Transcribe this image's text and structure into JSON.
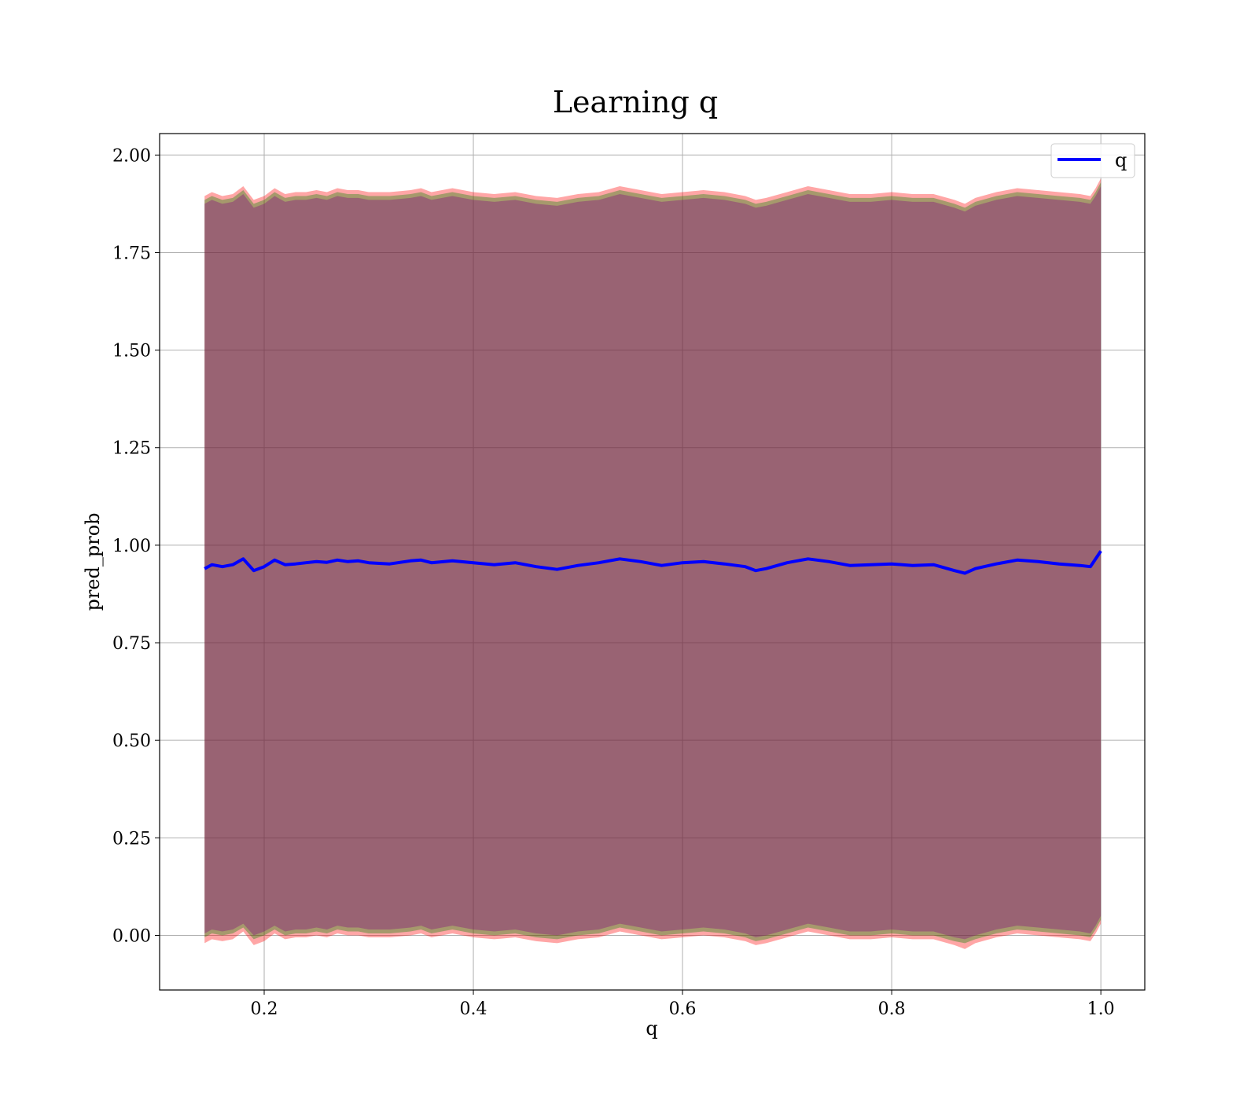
{
  "chart_data": {
    "type": "line",
    "title": "Learning q",
    "xlabel": "q",
    "ylabel": "pred_prob",
    "xlim": [
      0.1,
      1.042
    ],
    "ylim": [
      -0.14,
      2.055
    ],
    "xticks": [
      0.2,
      0.4,
      0.6,
      0.8,
      1.0
    ],
    "xtick_labels": [
      "0.2",
      "0.4",
      "0.6",
      "0.8",
      "1.0"
    ],
    "yticks": [
      0.0,
      0.25,
      0.5,
      0.75,
      1.0,
      1.25,
      1.5,
      1.75,
      2.0
    ],
    "ytick_labels": [
      "0.00",
      "0.25",
      "0.50",
      "0.75",
      "1.00",
      "1.25",
      "1.50",
      "1.75",
      "2.00"
    ],
    "grid": true,
    "legend_position": "top-right",
    "series": [
      {
        "name": "q",
        "color": "#0000ff",
        "x": [
          0.143,
          0.15,
          0.16,
          0.17,
          0.18,
          0.19,
          0.2,
          0.21,
          0.22,
          0.23,
          0.24,
          0.25,
          0.26,
          0.27,
          0.28,
          0.29,
          0.3,
          0.32,
          0.34,
          0.35,
          0.36,
          0.38,
          0.4,
          0.42,
          0.44,
          0.46,
          0.48,
          0.5,
          0.52,
          0.54,
          0.56,
          0.58,
          0.6,
          0.62,
          0.64,
          0.66,
          0.67,
          0.68,
          0.7,
          0.72,
          0.74,
          0.76,
          0.78,
          0.8,
          0.82,
          0.84,
          0.86,
          0.87,
          0.88,
          0.9,
          0.92,
          0.94,
          0.96,
          0.98,
          0.99,
          0.995,
          1.0
        ],
        "y": [
          0.94,
          0.95,
          0.945,
          0.95,
          0.965,
          0.935,
          0.945,
          0.962,
          0.95,
          0.952,
          0.955,
          0.958,
          0.956,
          0.962,
          0.958,
          0.96,
          0.955,
          0.952,
          0.96,
          0.962,
          0.955,
          0.96,
          0.955,
          0.95,
          0.955,
          0.945,
          0.938,
          0.948,
          0.955,
          0.965,
          0.958,
          0.948,
          0.955,
          0.958,
          0.952,
          0.945,
          0.935,
          0.94,
          0.955,
          0.965,
          0.958,
          0.948,
          0.95,
          0.952,
          0.948,
          0.95,
          0.935,
          0.928,
          0.94,
          0.952,
          0.962,
          0.958,
          0.952,
          0.948,
          0.945,
          0.965,
          0.985
        ]
      }
    ],
    "bands": [
      {
        "color": "#ff0000",
        "opacity": 0.35,
        "upper": [
          1.895,
          1.905,
          1.895,
          1.9,
          1.92,
          1.885,
          1.895,
          1.915,
          1.9,
          1.905,
          1.905,
          1.91,
          1.905,
          1.915,
          1.91,
          1.91,
          1.905,
          1.905,
          1.91,
          1.915,
          1.905,
          1.915,
          1.905,
          1.9,
          1.905,
          1.895,
          1.89,
          1.9,
          1.905,
          1.92,
          1.91,
          1.9,
          1.905,
          1.91,
          1.905,
          1.895,
          1.885,
          1.89,
          1.905,
          1.92,
          1.91,
          1.9,
          1.9,
          1.905,
          1.9,
          1.9,
          1.885,
          1.875,
          1.89,
          1.905,
          1.915,
          1.91,
          1.905,
          1.9,
          1.895,
          1.915,
          1.94
        ],
        "lower": [
          -0.02,
          -0.01,
          -0.015,
          -0.01,
          0.01,
          -0.025,
          -0.015,
          0.005,
          -0.01,
          -0.005,
          -0.005,
          0.0,
          -0.005,
          0.005,
          0.0,
          0.0,
          -0.005,
          -0.005,
          0.0,
          0.005,
          -0.005,
          0.005,
          -0.005,
          -0.01,
          -0.005,
          -0.015,
          -0.02,
          -0.01,
          -0.005,
          0.01,
          0.0,
          -0.01,
          -0.005,
          0.0,
          -0.005,
          -0.015,
          -0.025,
          -0.02,
          -0.005,
          0.01,
          0.0,
          -0.01,
          -0.01,
          -0.005,
          -0.01,
          -0.01,
          -0.025,
          -0.035,
          -0.02,
          -0.005,
          0.005,
          0.0,
          -0.005,
          -0.01,
          -0.015,
          0.005,
          0.03
        ]
      },
      {
        "color": "#008000",
        "opacity": 0.35,
        "upper": [
          1.885,
          1.895,
          1.885,
          1.89,
          1.91,
          1.875,
          1.885,
          1.905,
          1.89,
          1.895,
          1.895,
          1.9,
          1.895,
          1.905,
          1.9,
          1.9,
          1.895,
          1.895,
          1.9,
          1.905,
          1.895,
          1.905,
          1.895,
          1.89,
          1.895,
          1.885,
          1.88,
          1.89,
          1.895,
          1.91,
          1.9,
          1.89,
          1.895,
          1.9,
          1.895,
          1.885,
          1.875,
          1.88,
          1.895,
          1.91,
          1.9,
          1.89,
          1.89,
          1.895,
          1.89,
          1.89,
          1.875,
          1.865,
          1.88,
          1.895,
          1.905,
          1.9,
          1.895,
          1.89,
          1.885,
          1.905,
          1.93
        ],
        "lower": [
          -0.005,
          0.005,
          0.0,
          0.005,
          0.02,
          -0.01,
          0.0,
          0.015,
          0.0,
          0.005,
          0.005,
          0.01,
          0.005,
          0.015,
          0.01,
          0.01,
          0.005,
          0.005,
          0.01,
          0.015,
          0.005,
          0.015,
          0.005,
          0.0,
          0.005,
          -0.005,
          -0.01,
          0.0,
          0.005,
          0.02,
          0.01,
          0.0,
          0.005,
          0.01,
          0.005,
          -0.005,
          -0.015,
          -0.01,
          0.005,
          0.02,
          0.01,
          0.0,
          0.0,
          0.005,
          0.0,
          0.0,
          -0.015,
          -0.02,
          -0.01,
          0.005,
          0.015,
          0.01,
          0.005,
          0.0,
          -0.005,
          0.015,
          0.04
        ]
      },
      {
        "color": "#800080",
        "opacity": 0.35,
        "upper": [
          1.875,
          1.885,
          1.875,
          1.88,
          1.9,
          1.865,
          1.875,
          1.895,
          1.88,
          1.885,
          1.885,
          1.89,
          1.885,
          1.895,
          1.89,
          1.89,
          1.885,
          1.885,
          1.89,
          1.895,
          1.885,
          1.895,
          1.885,
          1.88,
          1.885,
          1.875,
          1.87,
          1.88,
          1.885,
          1.9,
          1.89,
          1.88,
          1.885,
          1.89,
          1.885,
          1.875,
          1.865,
          1.87,
          1.885,
          1.9,
          1.89,
          1.88,
          1.88,
          1.885,
          1.88,
          1.88,
          1.865,
          1.855,
          1.87,
          1.885,
          1.895,
          1.89,
          1.885,
          1.88,
          1.875,
          1.895,
          1.92
        ],
        "lower": [
          0.005,
          0.015,
          0.01,
          0.015,
          0.03,
          0.0,
          0.01,
          0.025,
          0.01,
          0.015,
          0.015,
          0.02,
          0.015,
          0.025,
          0.02,
          0.02,
          0.015,
          0.015,
          0.02,
          0.025,
          0.015,
          0.025,
          0.015,
          0.01,
          0.015,
          0.005,
          0.0,
          0.01,
          0.015,
          0.03,
          0.02,
          0.01,
          0.015,
          0.02,
          0.015,
          0.005,
          -0.005,
          0.0,
          0.015,
          0.03,
          0.02,
          0.01,
          0.01,
          0.015,
          0.01,
          0.01,
          -0.005,
          -0.01,
          0.0,
          0.015,
          0.025,
          0.02,
          0.015,
          0.01,
          0.005,
          0.025,
          0.05
        ]
      }
    ]
  }
}
